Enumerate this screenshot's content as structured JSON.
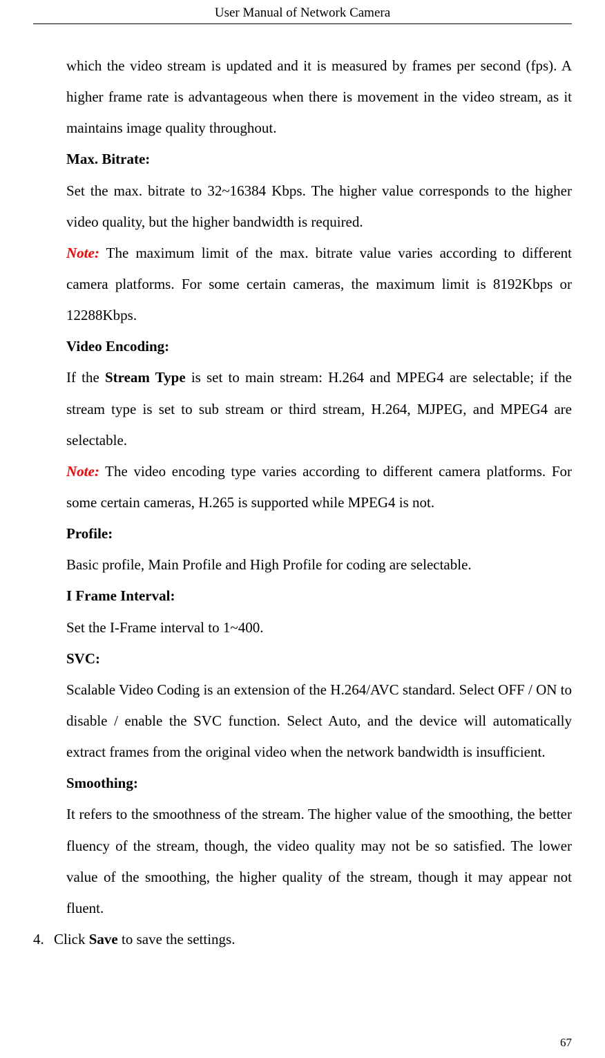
{
  "header": {
    "title": "User Manual of Network Camera"
  },
  "page_number": "67",
  "colors": {
    "note_color": "#ff0000",
    "text_color": "#000000",
    "background": "#ffffff"
  },
  "typography": {
    "body_fontsize": 21,
    "header_fontsize": 19,
    "pagenum_fontsize": 17,
    "line_height": 2.15,
    "font_family": "Times New Roman"
  },
  "content": {
    "intro_continuation": "which the video stream is updated and it is measured by frames per second (fps). A higher frame rate is advantageous when there is movement in the video stream, as it maintains image quality throughout.",
    "max_bitrate": {
      "heading": "Max. Bitrate:",
      "body": "Set the max. bitrate to 32~16384 Kbps. The higher value corresponds to the higher video quality, but the higher bandwidth is required.",
      "note_label": "Note:",
      "note_body": " The maximum limit of the max. bitrate value varies according to different camera platforms. For some certain cameras, the maximum limit is 8192Kbps or 12288Kbps."
    },
    "video_encoding": {
      "heading": "Video Encoding:",
      "body_prefix": "If the ",
      "body_bold": "Stream Type",
      "body_suffix": " is set to main stream: H.264 and MPEG4 are selectable; if the stream type is set to sub stream or third stream, H.264, MJPEG, and MPEG4 are selectable.",
      "note_label": "Note:",
      "note_body": " The video encoding type varies according to different camera platforms. For some certain cameras, H.265 is supported while MPEG4 is not."
    },
    "profile": {
      "heading": "Profile:",
      "body": "Basic profile, Main Profile and High Profile for coding are selectable."
    },
    "iframe": {
      "heading": "I Frame Interval:",
      "body": "Set the I-Frame interval to 1~400."
    },
    "svc": {
      "heading": "SVC:",
      "body": "Scalable Video Coding is an extension of the H.264/AVC standard. Select OFF / ON to disable / enable the SVC function. Select Auto, and the device will automatically extract frames from the original video when the network bandwidth is insufficient."
    },
    "smoothing": {
      "heading": "Smoothing:",
      "body": "It refers to the smoothness of the stream. The higher value of the smoothing, the better fluency of the stream, though, the video quality may not be so satisfied. The lower value of the smoothing, the higher quality of the stream, though it may appear not fluent."
    },
    "step4": {
      "number": "4.",
      "prefix": "Click ",
      "bold": "Save",
      "suffix": " to save the settings."
    }
  }
}
